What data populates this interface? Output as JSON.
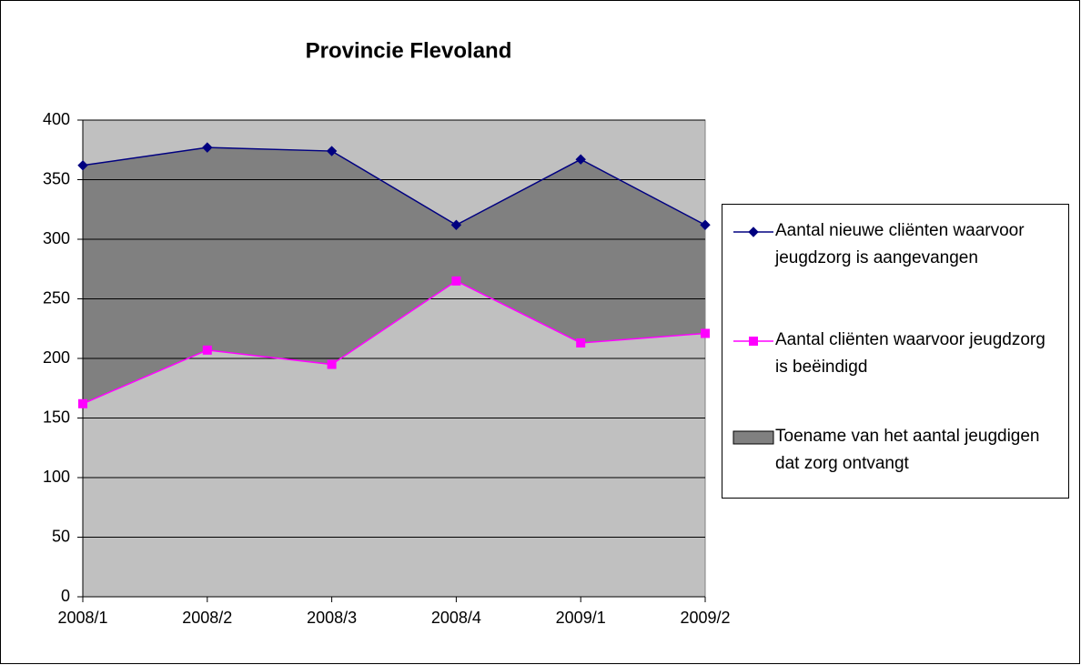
{
  "chart_data": {
    "type": "line",
    "title": "Provincie Flevoland",
    "categories": [
      "2008/1",
      "2008/2",
      "2008/3",
      "2008/4",
      "2009/1",
      "2009/2"
    ],
    "series": [
      {
        "name": "Aantal nieuwe cliënten waarvoor jeugdzorg is aangevangen",
        "color": "#000080",
        "marker": "diamond",
        "values": [
          362,
          377,
          374,
          312,
          367,
          312
        ]
      },
      {
        "name": "Aantal cliënten waarvoor jeugdzorg is beëindigd",
        "color": "#ff00ff",
        "marker": "square",
        "values": [
          162,
          207,
          195,
          265,
          213,
          221
        ]
      }
    ],
    "fill_between": {
      "name": "Toename van het aantal jeugdigen dat zorg ontvangt",
      "color": "#808080"
    },
    "plot_background": "#c0c0c0",
    "ylim": [
      0,
      400
    ],
    "yticks": [
      0,
      50,
      100,
      150,
      200,
      250,
      300,
      350,
      400
    ],
    "grid": true,
    "legend": "right"
  }
}
